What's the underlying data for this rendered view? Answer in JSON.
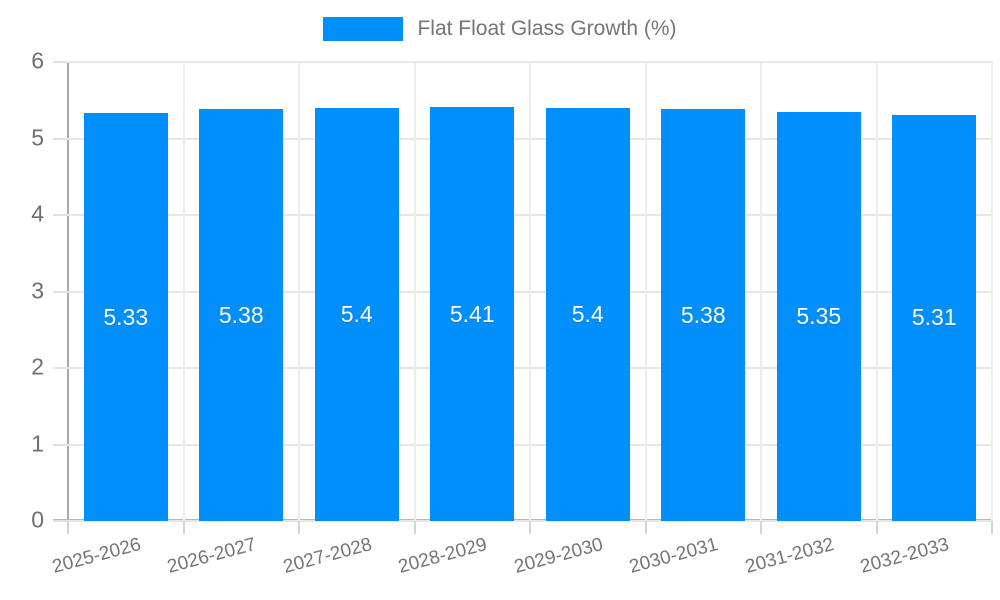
{
  "chart_data": {
    "type": "bar",
    "title": "Flat Float Glass Growth (%)",
    "categories": [
      "2025-2026",
      "2026-2027",
      "2027-2028",
      "2028-2029",
      "2029-2030",
      "2030-2031",
      "2031-2032",
      "2032-2033"
    ],
    "values": [
      5.33,
      5.38,
      5.4,
      5.41,
      5.4,
      5.38,
      5.35,
      5.31
    ],
    "value_labels": [
      "5.33",
      "5.38",
      "5.4",
      "5.41",
      "5.4",
      "5.38",
      "5.35",
      "5.31"
    ],
    "xlabel": "",
    "ylabel": "",
    "ylim": [
      0,
      6
    ],
    "yticks": [
      0,
      1,
      2,
      3,
      4,
      5,
      6
    ],
    "ytick_labels": [
      "0",
      "1",
      "2",
      "3",
      "4",
      "5",
      "6"
    ],
    "grid": true,
    "legend_position": "top"
  },
  "legend": {
    "label": "Flat Float Glass Growth (%)"
  },
  "colors": {
    "bar": "#008FFB",
    "value_label": "#ffffff",
    "grid": "#e7e7e7",
    "axis": "#a9a9a9",
    "tick_label": "#757575",
    "background": "#ffffff"
  }
}
